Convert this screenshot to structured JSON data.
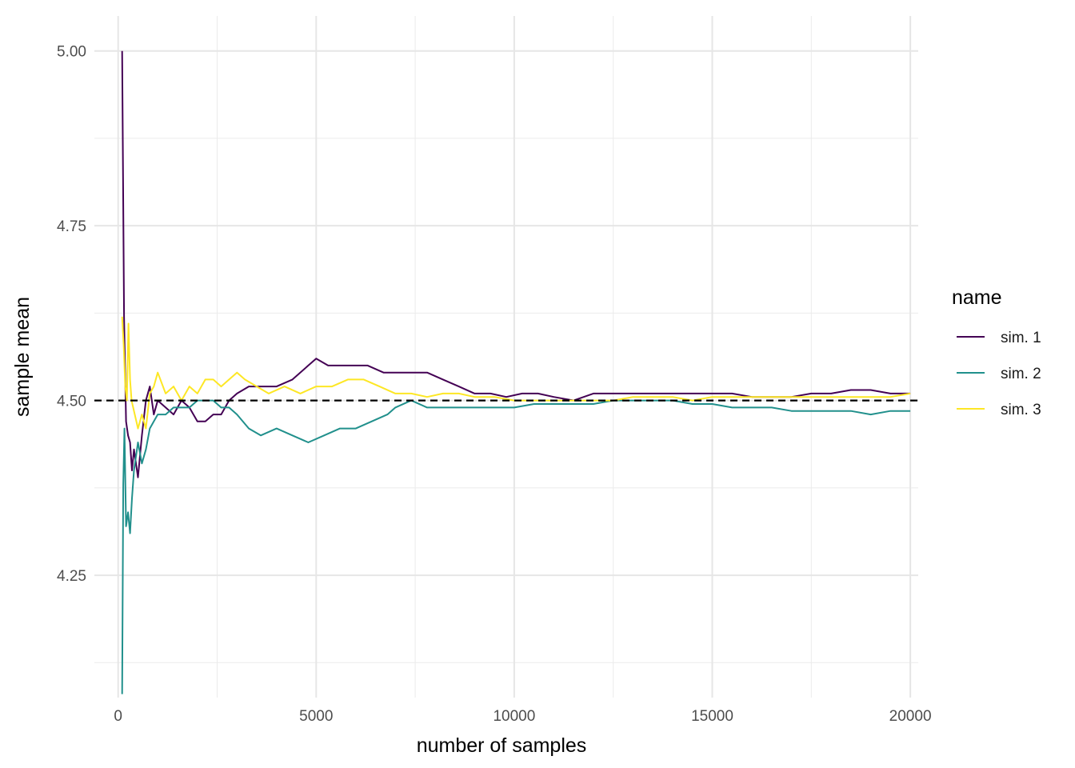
{
  "chart_data": {
    "type": "line",
    "title": "",
    "xlabel": "number of samples",
    "ylabel": "sample mean",
    "xlim": [
      -600,
      20200
    ],
    "ylim": [
      4.075,
      5.05
    ],
    "x_ticks": [
      0,
      5000,
      10000,
      15000,
      20000
    ],
    "x_tick_labels": [
      "0",
      "5000",
      "10000",
      "15000",
      "20000"
    ],
    "y_ticks": [
      4.25,
      4.5,
      4.75,
      5.0
    ],
    "y_tick_labels": [
      "4.25",
      "4.50",
      "4.75",
      "5.00"
    ],
    "grid": true,
    "legend_title": "name",
    "legend_position": "right",
    "reference_line": {
      "y": 4.5,
      "style": "dashed",
      "color": "#000000"
    },
    "series": [
      {
        "name": "sim. 1",
        "color": "#440154",
        "x": [
          100,
          150,
          200,
          250,
          300,
          350,
          400,
          450,
          500,
          600,
          700,
          800,
          900,
          1000,
          1200,
          1400,
          1600,
          1800,
          2000,
          2200,
          2400,
          2600,
          2800,
          3000,
          3300,
          3600,
          4000,
          4400,
          4800,
          5000,
          5300,
          5700,
          6000,
          6300,
          6700,
          7000,
          7400,
          7800,
          8200,
          8600,
          9000,
          9400,
          9800,
          10200,
          10600,
          11000,
          11500,
          12000,
          12500,
          13000,
          13500,
          14000,
          14500,
          15000,
          15500,
          16000,
          16500,
          17000,
          17500,
          18000,
          18500,
          19000,
          19500,
          20000
        ],
        "values": [
          5.0,
          4.62,
          4.47,
          4.45,
          4.44,
          4.4,
          4.43,
          4.41,
          4.39,
          4.45,
          4.5,
          4.52,
          4.48,
          4.5,
          4.49,
          4.48,
          4.5,
          4.49,
          4.47,
          4.47,
          4.48,
          4.48,
          4.5,
          4.51,
          4.52,
          4.52,
          4.52,
          4.53,
          4.55,
          4.56,
          4.55,
          4.55,
          4.55,
          4.55,
          4.54,
          4.54,
          4.54,
          4.54,
          4.53,
          4.52,
          4.51,
          4.51,
          4.505,
          4.51,
          4.51,
          4.505,
          4.5,
          4.51,
          4.51,
          4.51,
          4.51,
          4.51,
          4.51,
          4.51,
          4.51,
          4.505,
          4.505,
          4.505,
          4.51,
          4.51,
          4.515,
          4.515,
          4.51,
          4.51
        ]
      },
      {
        "name": "sim. 2",
        "color": "#21908C",
        "x": [
          100,
          130,
          160,
          200,
          250,
          300,
          350,
          400,
          450,
          500,
          600,
          700,
          800,
          900,
          1000,
          1200,
          1400,
          1600,
          1800,
          2000,
          2200,
          2400,
          2600,
          2800,
          3000,
          3300,
          3600,
          4000,
          4400,
          4800,
          5200,
          5600,
          6000,
          6400,
          6800,
          7000,
          7400,
          7800,
          8200,
          8600,
          9000,
          9500,
          10000,
          10500,
          11000,
          11500,
          12000,
          12500,
          13000,
          13500,
          14000,
          14500,
          15000,
          15500,
          16000,
          16500,
          17000,
          17500,
          18000,
          18500,
          19000,
          19500,
          20000
        ],
        "values": [
          4.08,
          4.38,
          4.46,
          4.32,
          4.34,
          4.31,
          4.36,
          4.4,
          4.42,
          4.44,
          4.41,
          4.43,
          4.46,
          4.47,
          4.48,
          4.48,
          4.49,
          4.49,
          4.49,
          4.5,
          4.5,
          4.5,
          4.49,
          4.49,
          4.48,
          4.46,
          4.45,
          4.46,
          4.45,
          4.44,
          4.45,
          4.46,
          4.46,
          4.47,
          4.48,
          4.49,
          4.5,
          4.49,
          4.49,
          4.49,
          4.49,
          4.49,
          4.49,
          4.495,
          4.495,
          4.495,
          4.495,
          4.5,
          4.5,
          4.5,
          4.5,
          4.495,
          4.495,
          4.49,
          4.49,
          4.49,
          4.485,
          4.485,
          4.485,
          4.485,
          4.48,
          4.485,
          4.485
        ]
      },
      {
        "name": "sim. 3",
        "color": "#FDE725",
        "x": [
          100,
          140,
          180,
          220,
          260,
          300,
          340,
          380,
          420,
          460,
          500,
          600,
          700,
          800,
          900,
          1000,
          1200,
          1400,
          1600,
          1800,
          2000,
          2200,
          2400,
          2600,
          2800,
          3000,
          3200,
          3500,
          3800,
          4200,
          4600,
          5000,
          5400,
          5800,
          6200,
          6600,
          7000,
          7400,
          7800,
          8200,
          8600,
          9000,
          9500,
          10000,
          10500,
          11000,
          11500,
          12000,
          12500,
          13000,
          13500,
          14000,
          14500,
          15000,
          15500,
          16000,
          16500,
          17000,
          17500,
          18000,
          18500,
          19000,
          19500,
          20000
        ],
        "values": [
          4.62,
          4.58,
          4.52,
          4.5,
          4.61,
          4.53,
          4.5,
          4.49,
          4.48,
          4.47,
          4.46,
          4.48,
          4.46,
          4.51,
          4.52,
          4.54,
          4.51,
          4.52,
          4.5,
          4.52,
          4.51,
          4.53,
          4.53,
          4.52,
          4.53,
          4.54,
          4.53,
          4.52,
          4.51,
          4.52,
          4.51,
          4.52,
          4.52,
          4.53,
          4.53,
          4.52,
          4.51,
          4.51,
          4.505,
          4.51,
          4.51,
          4.505,
          4.505,
          4.5,
          4.5,
          4.5,
          4.5,
          4.5,
          4.5,
          4.505,
          4.505,
          4.505,
          4.5,
          4.505,
          4.505,
          4.505,
          4.505,
          4.505,
          4.505,
          4.505,
          4.505,
          4.505,
          4.505,
          4.51
        ]
      }
    ]
  }
}
